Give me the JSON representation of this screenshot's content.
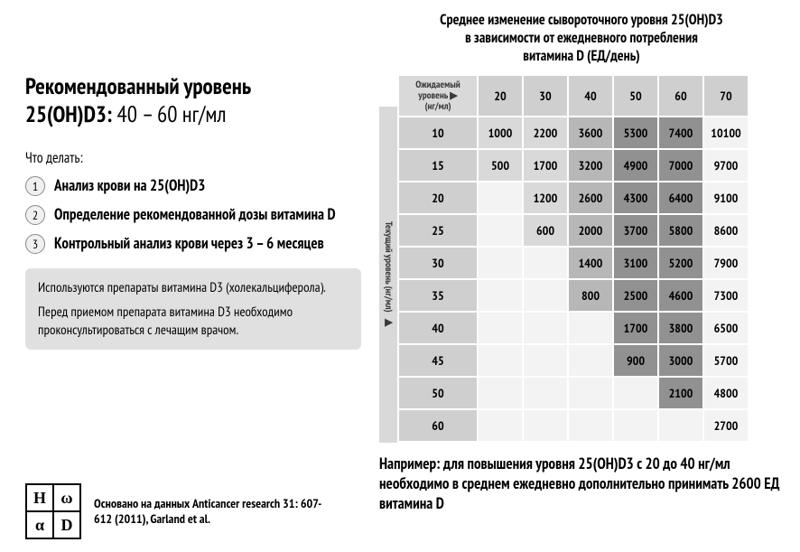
{
  "chart": {
    "title_l1": "Среднее изменение сывороточного уровня 25(OH)D3",
    "title_l2": "в зависимости от ежедневного потребления",
    "title_l3": "витамина D (ЕД/день)",
    "col_header_label_l1": "Ожидаемый уровень",
    "col_header_label_l2": "(нг/мл)",
    "row_header_label": "Текущий уровень (нг/мл)",
    "arrow_glyph": "▶",
    "targets": [
      20,
      30,
      40,
      50,
      60,
      70
    ],
    "currents": [
      10,
      15,
      20,
      25,
      30,
      35,
      40,
      45,
      50,
      60
    ],
    "cells": [
      [
        1000,
        2200,
        3600,
        5300,
        7400,
        10100
      ],
      [
        500,
        1700,
        3200,
        4900,
        7000,
        9700
      ],
      [
        null,
        1200,
        2600,
        4300,
        6400,
        9100
      ],
      [
        null,
        600,
        2000,
        3700,
        5800,
        8600
      ],
      [
        null,
        null,
        1400,
        3100,
        5200,
        7900
      ],
      [
        null,
        null,
        800,
        2500,
        4600,
        7300
      ],
      [
        null,
        null,
        null,
        1700,
        3800,
        6500
      ],
      [
        null,
        null,
        null,
        900,
        3000,
        5700
      ],
      [
        null,
        null,
        null,
        null,
        2100,
        4800
      ],
      [
        null,
        null,
        null,
        null,
        null,
        2700
      ]
    ],
    "shades": {
      "0": "#f3f3f3",
      "1": "#d9d9d9",
      "2": "#b7b7b7",
      "3": "#919191",
      "4": "#6f6f6f"
    },
    "shade_map": [
      [
        1,
        1,
        2,
        3,
        3,
        0
      ],
      [
        1,
        1,
        2,
        3,
        3,
        0
      ],
      [
        0,
        1,
        2,
        3,
        3,
        0
      ],
      [
        0,
        1,
        2,
        3,
        3,
        0
      ],
      [
        0,
        0,
        2,
        3,
        3,
        0
      ],
      [
        0,
        0,
        2,
        3,
        3,
        0
      ],
      [
        0,
        0,
        0,
        3,
        3,
        0
      ],
      [
        0,
        0,
        0,
        3,
        3,
        0
      ],
      [
        0,
        0,
        0,
        0,
        3,
        0
      ],
      [
        0,
        0,
        0,
        0,
        0,
        0
      ]
    ],
    "row_bg": "#cfcfcf"
  },
  "left": {
    "title_l1": "Рекомендованный уровень",
    "title_l2a": "25(OH)D3:",
    "title_l2b": " 40 – 60 нг/мл",
    "todo": "Что делать:",
    "steps": [
      "Анализ крови на 25(OH)D3",
      "Определение рекомендованной дозы витамина D",
      "Контрольный анализ крови через 3 – 6 месяцев"
    ],
    "note1": "Используются препараты витамина D3 (холекальциферола).",
    "note2": "Перед приемом препарата витамина D3 необходимо проконсультироваться с лечащим врачом."
  },
  "logo": {
    "a": "H",
    "b": "ω",
    "c": "α",
    "d": "D"
  },
  "source": "Основано на данных Anticancer research 31: 607-612 (2011), Garland et al.",
  "example": "Например: для повышения уровня 25(OH)D3 с 20 до 40 нг/мл необходимо в среднем ежедневно дополнительно принимать 2600 ЕД витамина D"
}
